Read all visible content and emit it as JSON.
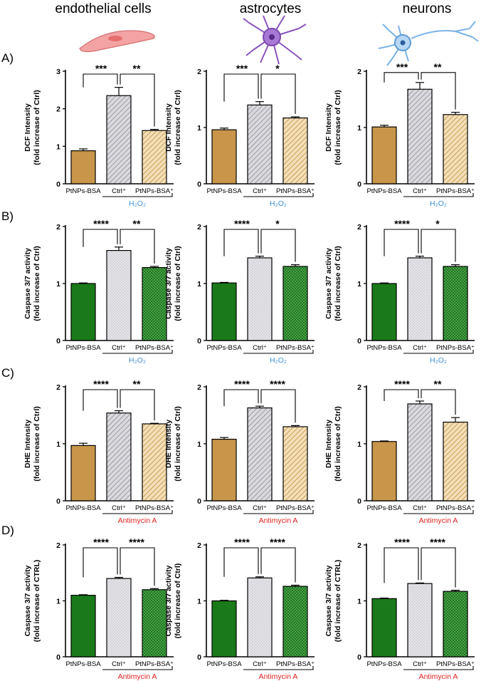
{
  "figure": {
    "column_titles": [
      "endothelial cells",
      "astrocytes",
      "neurons"
    ],
    "row_labels": [
      "A)",
      "B)",
      "C)",
      "D)"
    ],
    "colors": {
      "brown": "#c8964a",
      "green": "#1a7a1a",
      "gray_fill": "#d8d8dc",
      "hatch_brown": "#c8964a",
      "hatch_green": "#1a7a1a",
      "blue_treatment": "#3d8fd6",
      "red_treatment": "#e02020",
      "cell_endothelial": "#f08a8a",
      "cell_astrocyte": "#9b6ac8",
      "cell_neuron": "#7ab3e6"
    },
    "icons": [
      "endothelial-cell-icon",
      "astrocyte-icon",
      "neuron-icon"
    ]
  },
  "chart_data": [
    {
      "id": "A1",
      "type": "bar",
      "row": "A",
      "cell": "endothelial cells",
      "ylabel": [
        "DCF Intensity",
        "(fold increase of Ctrl)"
      ],
      "ylim": [
        0,
        3
      ],
      "yticks": [
        "0",
        "1",
        "2",
        "3"
      ],
      "categories": [
        "PtNPs-BSA",
        "Ctrl⁺",
        "PtNPs-BSA⁺"
      ],
      "values": [
        0.88,
        2.35,
        1.42
      ],
      "errors": [
        0.05,
        0.22,
        0.03
      ],
      "styles": [
        "brown",
        "gray",
        "hatch_brown"
      ],
      "treatment": "H₂O₂",
      "treatment_color": "blue",
      "sig": [
        "***",
        "**"
      ]
    },
    {
      "id": "A2",
      "type": "bar",
      "row": "A",
      "cell": "astrocytes",
      "ylabel": [
        "DCF Intensity",
        "(fold increase of Ctrl)"
      ],
      "ylim": [
        0,
        2
      ],
      "yticks": [
        "0",
        "1",
        "2"
      ],
      "categories": [
        "PtNPs-BSA",
        "Ctrl⁺",
        "PtNPs-BSA⁺"
      ],
      "values": [
        0.96,
        1.4,
        1.17
      ],
      "errors": [
        0.03,
        0.06,
        0.02
      ],
      "styles": [
        "brown",
        "gray",
        "hatch_brown"
      ],
      "treatment": "H₂O₂",
      "treatment_color": "blue",
      "sig": [
        "***",
        "*"
      ]
    },
    {
      "id": "A3",
      "type": "bar",
      "row": "A",
      "cell": "neurons",
      "ylabel": [
        "DCF Intensity",
        "(fold increase of Ctrl)"
      ],
      "ylim": [
        0,
        2
      ],
      "yticks": [
        "0",
        "1",
        "2"
      ],
      "categories": [
        "PtNPs-BSA",
        "Ctrl⁺",
        "PtNPs-BSA⁺"
      ],
      "values": [
        1.01,
        1.68,
        1.23
      ],
      "errors": [
        0.03,
        0.12,
        0.04
      ],
      "styles": [
        "brown",
        "gray",
        "hatch_brown"
      ],
      "treatment": "H₂O₂",
      "treatment_color": "blue",
      "sig": [
        "***",
        "**"
      ]
    },
    {
      "id": "B1",
      "type": "bar",
      "row": "B",
      "cell": "endothelial cells",
      "ylabel": [
        "Caspase 3/7 activity",
        "(fold increase of Ctrl)"
      ],
      "ylim": [
        0,
        2
      ],
      "yticks": [
        "0",
        "1",
        "2"
      ],
      "categories": [
        "PtNPs-BSA",
        "Ctrl⁺",
        "PtNPs-BSA⁺"
      ],
      "values": [
        1.0,
        1.58,
        1.28
      ],
      "errors": [
        0.01,
        0.06,
        0.02
      ],
      "styles": [
        "green",
        "gray",
        "hatch_green"
      ],
      "treatment": "H₂O₂",
      "treatment_color": "blue",
      "sig": [
        "****",
        "**"
      ]
    },
    {
      "id": "B2",
      "type": "bar",
      "row": "B",
      "cell": "astrocytes",
      "ylabel": [
        "Caspase 3/7 activity",
        "(fold increase of Ctrl)"
      ],
      "ylim": [
        0,
        2
      ],
      "yticks": [
        "0",
        "1",
        "2"
      ],
      "categories": [
        "PtNPs-BSA",
        "Ctrl⁺",
        "PtNPs-BSA⁺"
      ],
      "values": [
        1.01,
        1.45,
        1.3
      ],
      "errors": [
        0.01,
        0.03,
        0.03
      ],
      "styles": [
        "green",
        "gray",
        "hatch_green"
      ],
      "treatment": "H₂O₂",
      "treatment_color": "blue",
      "sig": [
        "****",
        "*"
      ]
    },
    {
      "id": "B3",
      "type": "bar",
      "row": "B",
      "cell": "neurons",
      "ylabel": [
        "Caspase 3/7 activity",
        "(fold increase of Ctrl)"
      ],
      "ylim": [
        0,
        2
      ],
      "yticks": [
        "0",
        "1",
        "2"
      ],
      "categories": [
        "PtNPs-BSA",
        "Ctrl⁺",
        "PtNPs-BSA⁺"
      ],
      "values": [
        1.0,
        1.45,
        1.3
      ],
      "errors": [
        0.01,
        0.03,
        0.03
      ],
      "styles": [
        "green",
        "gray",
        "hatch_green"
      ],
      "treatment": "H₂O₂",
      "treatment_color": "blue",
      "sig": [
        "****",
        "*"
      ]
    },
    {
      "id": "C1",
      "type": "bar",
      "row": "C",
      "cell": "endothelial cells",
      "ylabel": [
        "DHE Intensity",
        "(fold increase of Ctrl)"
      ],
      "ylim": [
        0,
        2
      ],
      "yticks": [
        "0",
        "1",
        "2"
      ],
      "categories": [
        "PtNPs-BSA",
        "Ctrl⁺",
        "PtNPs-BSA⁺"
      ],
      "values": [
        0.97,
        1.54,
        1.35
      ],
      "errors": [
        0.04,
        0.04,
        0.01
      ],
      "styles": [
        "brown",
        "gray",
        "hatch_brown"
      ],
      "treatment": "Antimycin A",
      "treatment_color": "red",
      "sig": [
        "****",
        "**"
      ]
    },
    {
      "id": "C2",
      "type": "bar",
      "row": "C",
      "cell": "astrocytes",
      "ylabel": [
        "DHE Intensity",
        "(fold increase of Ctrl)"
      ],
      "ylim": [
        0,
        2
      ],
      "yticks": [
        "0",
        "1",
        "2"
      ],
      "categories": [
        "PtNPs-BSA",
        "Ctrl⁺",
        "PtNPs-BSA⁺"
      ],
      "values": [
        1.08,
        1.63,
        1.3
      ],
      "errors": [
        0.03,
        0.03,
        0.02
      ],
      "styles": [
        "brown",
        "gray",
        "hatch_brown"
      ],
      "treatment": "Antimycin A",
      "treatment_color": "red",
      "sig": [
        "****",
        "****"
      ]
    },
    {
      "id": "C3",
      "type": "bar",
      "row": "C",
      "cell": "neurons",
      "ylabel": [
        "DHE Intensity",
        "(fold increase of Ctrl)"
      ],
      "ylim": [
        0,
        2
      ],
      "yticks": [
        "0",
        "1",
        "2"
      ],
      "categories": [
        "PtNPs-BSA",
        "Ctrl⁺",
        "PtNPs-BSA⁺"
      ],
      "values": [
        1.04,
        1.7,
        1.38
      ],
      "errors": [
        0.01,
        0.05,
        0.08
      ],
      "styles": [
        "brown",
        "gray",
        "hatch_brown"
      ],
      "treatment": "Antimycin A",
      "treatment_color": "red",
      "sig": [
        "****",
        "**"
      ]
    },
    {
      "id": "D1",
      "type": "bar",
      "row": "D",
      "cell": "endothelial cells",
      "ylabel": [
        "Caspase 3/7 activity",
        "(fold increase of CTRL)"
      ],
      "ylim": [
        0,
        2
      ],
      "yticks": [
        "0",
        "1",
        "2"
      ],
      "categories": [
        "PtNPs-BSA",
        "Ctrl⁺",
        "PtNPs-BSA⁺"
      ],
      "values": [
        1.1,
        1.4,
        1.2
      ],
      "errors": [
        0.01,
        0.02,
        0.02
      ],
      "styles": [
        "green",
        "gray",
        "hatch_green"
      ],
      "treatment": "Antimycin A",
      "treatment_color": "red",
      "sig": [
        "****",
        "****"
      ]
    },
    {
      "id": "D2",
      "type": "bar",
      "row": "D",
      "cell": "astrocytes",
      "ylabel": [
        "Caspase 3/7 activity",
        "(fold increase of Ctrl)"
      ],
      "ylim": [
        0,
        2
      ],
      "yticks": [
        "0",
        "1",
        "2"
      ],
      "categories": [
        "PtNPs-BSA",
        "Ctrl⁺",
        "PtNPs-BSA⁺"
      ],
      "values": [
        1.0,
        1.41,
        1.26
      ],
      "errors": [
        0.01,
        0.02,
        0.02
      ],
      "styles": [
        "green",
        "gray",
        "hatch_green"
      ],
      "treatment": "Antimycin A",
      "treatment_color": "red",
      "sig": [
        "****",
        "****"
      ]
    },
    {
      "id": "D3",
      "type": "bar",
      "row": "D",
      "cell": "neurons",
      "ylabel": [
        "Caspase 3/7 activity",
        "(fold increase of CTRL)"
      ],
      "ylim": [
        0,
        2
      ],
      "yticks": [
        "0",
        "1",
        "2"
      ],
      "categories": [
        "PtNPs-BSA",
        "Ctrl⁺",
        "PtNPs-BSA⁺"
      ],
      "values": [
        1.04,
        1.31,
        1.17
      ],
      "errors": [
        0.01,
        0.01,
        0.02
      ],
      "styles": [
        "green",
        "gray",
        "hatch_green"
      ],
      "treatment": "Antimycin A",
      "treatment_color": "red",
      "sig": [
        "****",
        "****"
      ]
    }
  ]
}
